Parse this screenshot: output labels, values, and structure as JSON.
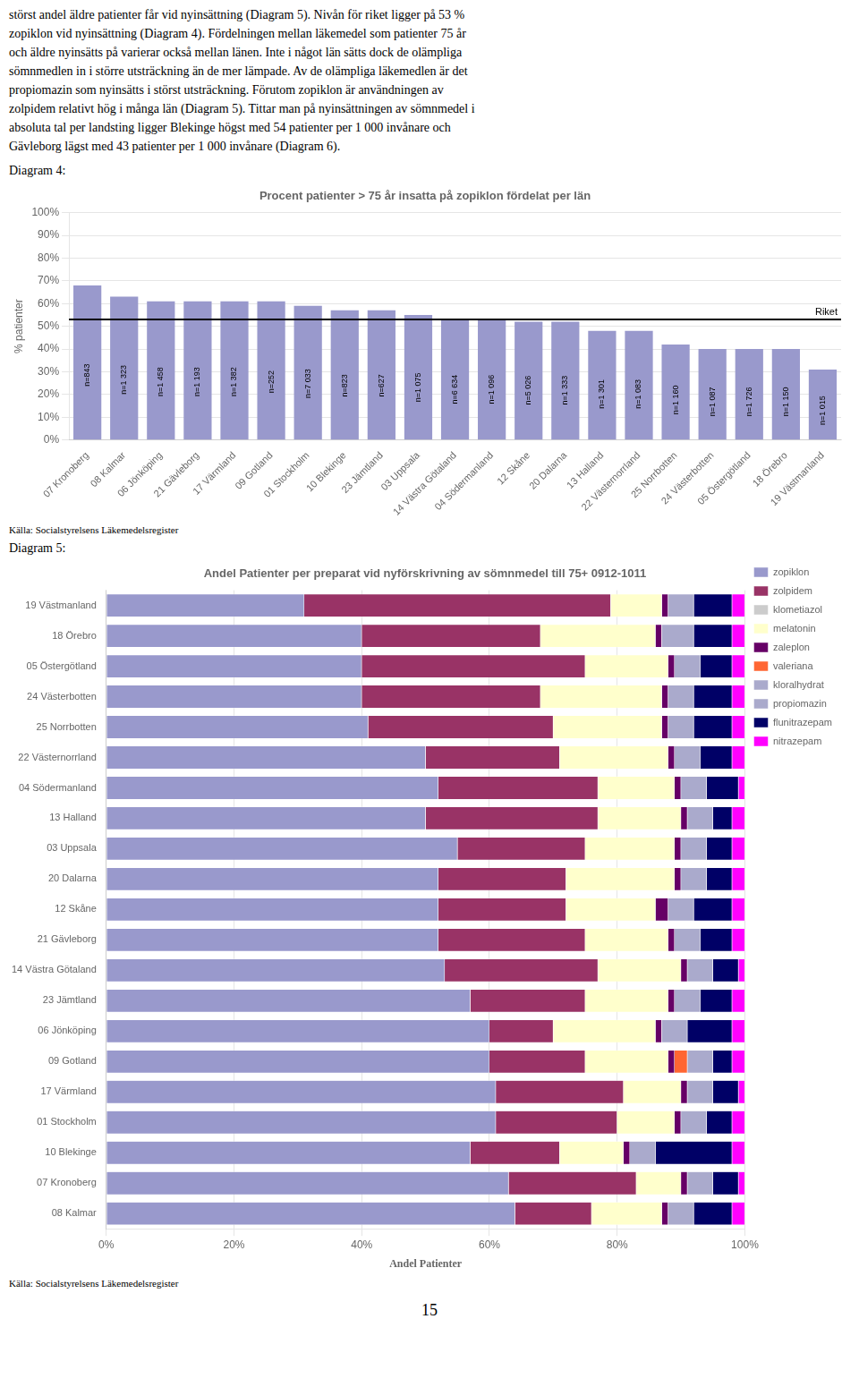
{
  "text": [
    "störst andel äldre patienter får vid nyinsättning (Diagram 5). Nivån för riket ligger på 53 %",
    "zopiklon vid nyinsättning (Diagram 4). Fördelningen mellan läkemedel som patienter 75 år",
    "och äldre nyinsätts på varierar också mellan länen. Inte i något län sätts dock de olämpliga",
    "sömnmedlen in i större utsträckning än de mer lämpade. Av de olämpliga läkemedlen är det",
    "propiomazin som nyinsätts i störst utsträckning. Förutom zopiklon är användningen av",
    "zolpidem relativt hög i många län (Diagram 5). Tittar man på nyinsättningen av sömnmedel i",
    "absoluta tal per landsting ligger Blekinge högst med 54 patienter per 1 000 invånare och",
    "Gävleborg lägst med 43 patienter per 1 000 invånare (Diagram 6)."
  ],
  "page_number": "15",
  "chart_data": [
    {
      "type": "bar",
      "caption": "Diagram 4:",
      "title": "Procent patienter > 75 år insatta på zopiklon fördelat per län",
      "ylabel": "% patienter",
      "source": "Källa: Socialstyrelsens Läkemedelsregister",
      "categories": [
        "07 Kronoberg",
        "08 Kalmar",
        "06 Jönköping",
        "21 Gävleborg",
        "17 Värmland",
        "09 Gotland",
        "01 Stockholm",
        "10 Blekinge",
        "23 Jämtland",
        "03 Uppsala",
        "14 Västra Götaland",
        "04 Södermanland",
        "12 Skåne",
        "20 Dalarna",
        "13 Halland",
        "22 Västernorrland",
        "25 Norrbotten",
        "24 Västerbotten",
        "05 Östergötland",
        "18 Örebro",
        "19 Västmanland"
      ],
      "values": [
        68,
        63,
        61,
        61,
        61,
        61,
        59,
        57,
        57,
        55,
        53,
        53,
        52,
        52,
        48,
        48,
        42,
        40,
        40,
        40,
        31
      ],
      "n_labels": [
        "n=843",
        "n=1 323",
        "n=1 458",
        "n=1 193",
        "n=1 382",
        "n=252",
        "n=7 033",
        "n=823",
        "n=627",
        "n=1 075",
        "n=6 634",
        "n=1 096",
        "n=5 026",
        "n=1 333",
        "n=1 301",
        "n=1 083",
        "n=1 160",
        "n=1 087",
        "n=1 726",
        "n=1 150",
        "n=1 015"
      ],
      "color": "#9999cc",
      "reference_line": {
        "value": 53,
        "label": "Riket"
      },
      "ylim": [
        0,
        100
      ],
      "yticks": [
        {
          "value": 0,
          "label": "0%"
        },
        {
          "value": 10,
          "label": "10%"
        },
        {
          "value": 20,
          "label": "20%"
        },
        {
          "value": 30,
          "label": "30%"
        },
        {
          "value": 40,
          "label": "40%"
        },
        {
          "value": 50,
          "label": "50%"
        },
        {
          "value": 60,
          "label": "60%"
        },
        {
          "value": 70,
          "label": "70%"
        },
        {
          "value": 80,
          "label": "80%"
        },
        {
          "value": 90,
          "label": "90%"
        },
        {
          "value": 100,
          "label": "100%"
        }
      ],
      "grid": true
    },
    {
      "type": "bar",
      "orientation": "horizontal",
      "stacked": true,
      "caption": "Diagram 5:",
      "title": "Andel Patienter per preparat vid nyförskrivning av sömnmedel till 75+ 0912-1011",
      "xlabel": "Andel Patienter",
      "source": "Källa: Socialstyrelsens Läkemedelsregister",
      "categories": [
        "19 Västmanland",
        "18 Örebro",
        "05 Östergötland",
        "24 Västerbotten",
        "25 Norrbotten",
        "22 Västernorrland",
        "04 Södermanland",
        "13 Halland",
        "03 Uppsala",
        "20 Dalarna",
        "12 Skåne",
        "21 Gävleborg",
        "14 Västra Götaland",
        "23 Jämtland",
        "06 Jönköping",
        "09 Gotland",
        "17 Värmland",
        "01 Stockholm",
        "10 Blekinge",
        "07 Kronoberg",
        "08 Kalmar"
      ],
      "series": [
        {
          "name": "zopiklon",
          "color": "#9999cc",
          "values": [
            31,
            40,
            40,
            40,
            41,
            50,
            52,
            50,
            55,
            52,
            52,
            52,
            53,
            57,
            60,
            60,
            61,
            61,
            57,
            63,
            64
          ]
        },
        {
          "name": "zolpidem",
          "color": "#993366",
          "values": [
            48,
            28,
            35,
            28,
            29,
            21,
            25,
            27,
            20,
            20,
            20,
            23,
            24,
            18,
            10,
            15,
            20,
            19,
            14,
            20,
            12
          ]
        },
        {
          "name": "klometiazol",
          "color": "#cccccc",
          "values": [
            0,
            0,
            0,
            0,
            0,
            0,
            0,
            0,
            0,
            0,
            0,
            0,
            0,
            0,
            0,
            0,
            0,
            0,
            0,
            0,
            0
          ]
        },
        {
          "name": "melatonin",
          "color": "#ffffcc",
          "values": [
            8,
            18,
            13,
            19,
            17,
            17,
            12,
            13,
            14,
            17,
            14,
            13,
            13,
            13,
            16,
            13,
            9,
            9,
            10,
            7,
            11
          ]
        },
        {
          "name": "zaleplon",
          "color": "#660066",
          "values": [
            1,
            1,
            1,
            1,
            1,
            1,
            1,
            1,
            1,
            1,
            2,
            1,
            1,
            1,
            1,
            1,
            1,
            1,
            1,
            1,
            1
          ]
        },
        {
          "name": "valeriana",
          "color": "#ff6633",
          "values": [
            0,
            0,
            0,
            0,
            0,
            0,
            0,
            0,
            0,
            0,
            0,
            0,
            0,
            0,
            0,
            2,
            0,
            0,
            0,
            0,
            0
          ]
        },
        {
          "name": "kloralhydrat",
          "color": "#aaaacc",
          "values": [
            0,
            0,
            0,
            0,
            0,
            0,
            0,
            0,
            0,
            0,
            0,
            0,
            0,
            0,
            0,
            0,
            0,
            0,
            0,
            0,
            0
          ]
        },
        {
          "name": "propiomazin",
          "color": "#aaaacc",
          "values": [
            4,
            5,
            4,
            4,
            4,
            4,
            4,
            4,
            4,
            4,
            4,
            4,
            4,
            4,
            4,
            4,
            4,
            4,
            4,
            4,
            4
          ]
        },
        {
          "name": "flunitrazepam",
          "color": "#000066",
          "values": [
            6,
            6,
            5,
            6,
            6,
            5,
            5,
            3,
            4,
            4,
            6,
            5,
            4,
            5,
            7,
            3,
            4,
            4,
            12,
            4,
            6
          ]
        },
        {
          "name": "nitrazepam",
          "color": "#ff00ff",
          "values": [
            2,
            2,
            2,
            2,
            2,
            2,
            1,
            2,
            2,
            2,
            2,
            2,
            1,
            2,
            2,
            2,
            1,
            2,
            2,
            1,
            2
          ]
        }
      ],
      "xlim": [
        0,
        100
      ],
      "xticks": [
        {
          "value": 0,
          "label": "0%"
        },
        {
          "value": 20,
          "label": "20%"
        },
        {
          "value": 40,
          "label": "40%"
        },
        {
          "value": 60,
          "label": "60%"
        },
        {
          "value": 80,
          "label": "80%"
        },
        {
          "value": 100,
          "label": "100%"
        }
      ],
      "grid": true,
      "legend": "right"
    }
  ]
}
